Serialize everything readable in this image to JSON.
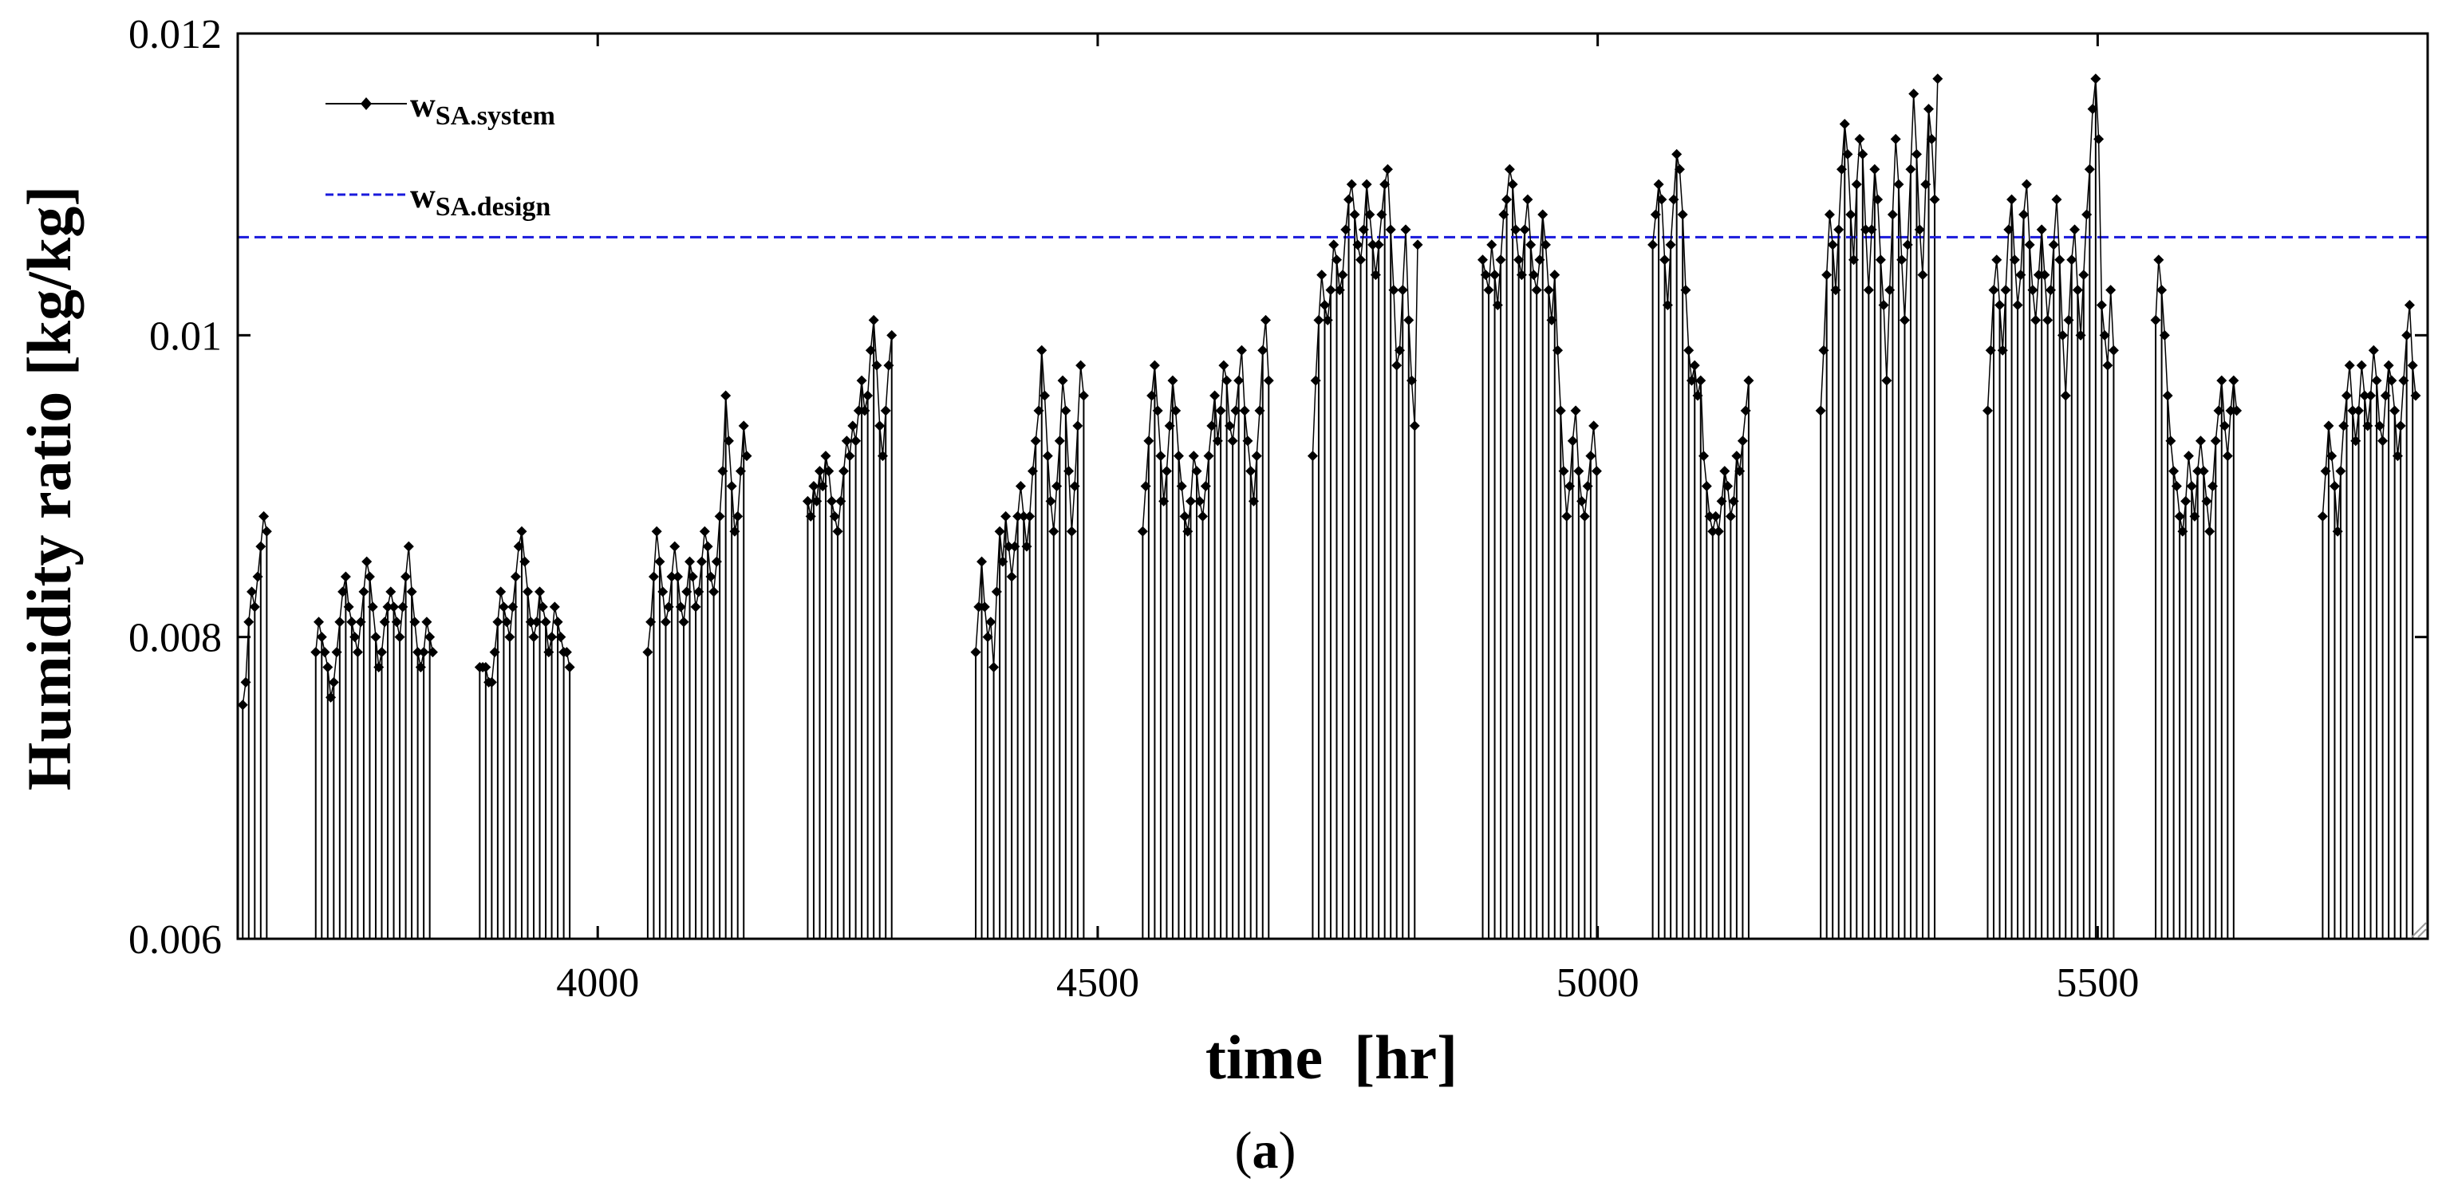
{
  "chart_data": {
    "type": "line",
    "title": "",
    "xlabel": "time  [hr]",
    "ylabel": "Humidity ratio [kg/kg]",
    "caption": {
      "open": "(",
      "letter": "a",
      "close": ")"
    },
    "xlim": [
      3640,
      5830
    ],
    "ylim": [
      0.006,
      0.012
    ],
    "x_ticks": [
      4000,
      4500,
      5000,
      5500
    ],
    "x_tick_labels": [
      "4000",
      "4500",
      "5000",
      "5500"
    ],
    "y_ticks": [
      0.006,
      0.008,
      0.01,
      0.012
    ],
    "y_tick_labels": [
      "0.006",
      "0.008",
      "0.01",
      "0.012"
    ],
    "legend_position": "top-left",
    "series": [
      {
        "name": "w_SA.system",
        "legend_main": "w",
        "legend_sub": "SA.system",
        "style": "solid line with diamond markers, operating hours only",
        "color": "#000000",
        "days": [
          {
            "start": 3645,
            "values": [
              0.00755,
              0.0077,
              0.0081,
              0.0083,
              0.0082,
              0.0084,
              0.0086,
              0.0088,
              0.0087
            ]
          },
          {
            "start": 3718,
            "values": [
              0.0079,
              0.0081,
              0.008,
              0.0079,
              0.0078,
              0.0076,
              0.0077,
              0.0079,
              0.0081,
              0.0083,
              0.0084,
              0.0082,
              0.0081,
              0.008,
              0.0079,
              0.0081,
              0.0083,
              0.0085,
              0.0084,
              0.0082,
              0.008,
              0.0078,
              0.0079,
              0.0081,
              0.0082,
              0.0083,
              0.0082,
              0.0081,
              0.008,
              0.0082,
              0.0084,
              0.0086,
              0.0083,
              0.0081,
              0.0079,
              0.0078,
              0.0079,
              0.0081,
              0.008,
              0.0079
            ]
          },
          {
            "start": 3882,
            "values": [
              0.0078,
              0.0078,
              0.0078,
              0.0077,
              0.0077,
              0.0079,
              0.0081,
              0.0083,
              0.0082,
              0.0081,
              0.008,
              0.0082,
              0.0084,
              0.0086,
              0.0087,
              0.0085,
              0.0083,
              0.0081,
              0.008,
              0.0081,
              0.0083,
              0.0082,
              0.0081,
              0.0079,
              0.008,
              0.0082,
              0.0081,
              0.008,
              0.0079,
              0.0079,
              0.0078
            ]
          },
          {
            "start": 4050,
            "values": [
              0.0079,
              0.0081,
              0.0084,
              0.0087,
              0.0085,
              0.0083,
              0.0081,
              0.0082,
              0.0084,
              0.0086,
              0.0084,
              0.0082,
              0.0081,
              0.0083,
              0.0085,
              0.0084,
              0.0082,
              0.0083,
              0.0085,
              0.0087,
              0.0086,
              0.0084,
              0.0083,
              0.0085,
              0.0088,
              0.0091,
              0.0096,
              0.0093,
              0.009,
              0.0087,
              0.0088,
              0.0091,
              0.0094,
              0.0092
            ]
          },
          {
            "start": 4210,
            "values": [
              0.0089,
              0.0088,
              0.009,
              0.0089,
              0.0091,
              0.009,
              0.0092,
              0.0091,
              0.0089,
              0.0088,
              0.0087,
              0.0089,
              0.0091,
              0.0093,
              0.0092,
              0.0094,
              0.0093,
              0.0095,
              0.0097,
              0.0095,
              0.0096,
              0.0099,
              0.0101,
              0.0098,
              0.0094,
              0.0092,
              0.0095,
              0.0098,
              0.01
            ]
          },
          {
            "start": 4378,
            "values": [
              0.0079,
              0.0082,
              0.0085,
              0.0082,
              0.008,
              0.0081,
              0.0078,
              0.0083,
              0.0087,
              0.0085,
              0.0088,
              0.0086,
              0.0084,
              0.0086,
              0.0088,
              0.009,
              0.0088,
              0.0086,
              0.0088,
              0.0091,
              0.0093,
              0.0095,
              0.0099,
              0.0096,
              0.0092,
              0.0089,
              0.0087,
              0.009,
              0.0093,
              0.0097,
              0.0095,
              0.0091,
              0.0087,
              0.009,
              0.0094,
              0.0098,
              0.0096
            ]
          },
          {
            "start": 4545,
            "values": [
              0.0087,
              0.009,
              0.0093,
              0.0096,
              0.0098,
              0.0095,
              0.0092,
              0.0089,
              0.0091,
              0.0094,
              0.0097,
              0.0095,
              0.0092,
              0.009,
              0.0088,
              0.0087,
              0.0089,
              0.0092,
              0.0091,
              0.0089,
              0.0088,
              0.009,
              0.0092,
              0.0094,
              0.0096,
              0.0093,
              0.0095,
              0.0098,
              0.0097,
              0.0094,
              0.0093,
              0.0095,
              0.0097,
              0.0099,
              0.0095,
              0.0093,
              0.0091,
              0.0089,
              0.0092,
              0.0095,
              0.0099,
              0.0101,
              0.0097
            ]
          },
          {
            "start": 4715,
            "values": [
              0.0092,
              0.0097,
              0.0101,
              0.0104,
              0.0102,
              0.0101,
              0.0103,
              0.0106,
              0.0105,
              0.0103,
              0.0104,
              0.0107,
              0.0109,
              0.011,
              0.0108,
              0.0106,
              0.0105,
              0.0107,
              0.011,
              0.0108,
              0.0106,
              0.0104,
              0.0106,
              0.0108,
              0.011,
              0.0111,
              0.0107,
              0.0103,
              0.0098,
              0.0099,
              0.0103,
              0.0107,
              0.0101,
              0.0097,
              0.0094,
              0.0106
            ]
          },
          {
            "start": 4885,
            "values": [
              0.0105,
              0.0104,
              0.0103,
              0.0106,
              0.0104,
              0.0102,
              0.0105,
              0.0108,
              0.0109,
              0.0111,
              0.011,
              0.0107,
              0.0105,
              0.0104,
              0.0107,
              0.0109,
              0.0106,
              0.0104,
              0.0103,
              0.0105,
              0.0108,
              0.0106,
              0.0103,
              0.0101,
              0.0104,
              0.0099,
              0.0095,
              0.0091,
              0.0088,
              0.009,
              0.0093,
              0.0095,
              0.0091,
              0.0089,
              0.0088,
              0.009,
              0.0092,
              0.0094,
              0.0091
            ]
          },
          {
            "start": 5055,
            "values": [
              0.0106,
              0.0108,
              0.011,
              0.0109,
              0.0105,
              0.0102,
              0.0106,
              0.0109,
              0.0112,
              0.0111,
              0.0108,
              0.0103,
              0.0099,
              0.0097,
              0.0098,
              0.0096,
              0.0097,
              0.0092,
              0.009,
              0.0088,
              0.0087,
              0.0088,
              0.0087,
              0.0089,
              0.0091,
              0.009,
              0.0088,
              0.0089,
              0.0092,
              0.0091,
              0.0093,
              0.0095,
              0.0097
            ]
          },
          {
            "start": 5223,
            "values": [
              0.0095,
              0.0099,
              0.0104,
              0.0108,
              0.0106,
              0.0103,
              0.0107,
              0.0111,
              0.0114,
              0.0112,
              0.0108,
              0.0105,
              0.011,
              0.0113,
              0.0112,
              0.0107,
              0.0103,
              0.0107,
              0.0111,
              0.0109,
              0.0105,
              0.0102,
              0.0097,
              0.0103,
              0.0108,
              0.0113,
              0.011,
              0.0105,
              0.0101,
              0.0106,
              0.0111,
              0.0116,
              0.0112,
              0.0107,
              0.0104,
              0.011,
              0.0115,
              0.0113,
              0.0109,
              0.0117
            ]
          },
          {
            "start": 5390,
            "values": [
              0.0095,
              0.0099,
              0.0103,
              0.0105,
              0.0102,
              0.0099,
              0.0103,
              0.0107,
              0.0109,
              0.0105,
              0.0102,
              0.0104,
              0.0108,
              0.011,
              0.0106,
              0.0103,
              0.0101,
              0.0104,
              0.0107,
              0.0104,
              0.0101,
              0.0103,
              0.0106,
              0.0109,
              0.0105,
              0.01,
              0.0096,
              0.0101,
              0.0105,
              0.0107,
              0.0103,
              0.01,
              0.0104,
              0.0108,
              0.0111,
              0.0115,
              0.0117,
              0.0113,
              0.0102,
              0.01,
              0.0098,
              0.0103,
              0.0099
            ]
          },
          {
            "start": 5558,
            "values": [
              0.0101,
              0.0105,
              0.0103,
              0.01,
              0.0096,
              0.0093,
              0.0091,
              0.009,
              0.0088,
              0.0087,
              0.0089,
              0.0092,
              0.009,
              0.0088,
              0.0091,
              0.0093,
              0.0091,
              0.0089,
              0.0087,
              0.009,
              0.0093,
              0.0095,
              0.0097,
              0.0094,
              0.0092,
              0.0095,
              0.0097,
              0.0095
            ]
          },
          {
            "start": 5725,
            "values": [
              0.0088,
              0.0091,
              0.0094,
              0.0092,
              0.009,
              0.0087,
              0.0091,
              0.0094,
              0.0096,
              0.0098,
              0.0095,
              0.0093,
              0.0095,
              0.0098,
              0.0096,
              0.0094,
              0.0096,
              0.0099,
              0.0097,
              0.0094,
              0.0093,
              0.0096,
              0.0098,
              0.0097,
              0.0095,
              0.0092,
              0.0094,
              0.0097,
              0.01,
              0.0102,
              0.0098,
              0.0096
            ]
          }
        ]
      },
      {
        "name": "w_SA.design",
        "legend_main": "w",
        "legend_sub": "SA.design",
        "style": "dashed line",
        "color": "#1a1adc",
        "value": 0.01065
      }
    ]
  }
}
